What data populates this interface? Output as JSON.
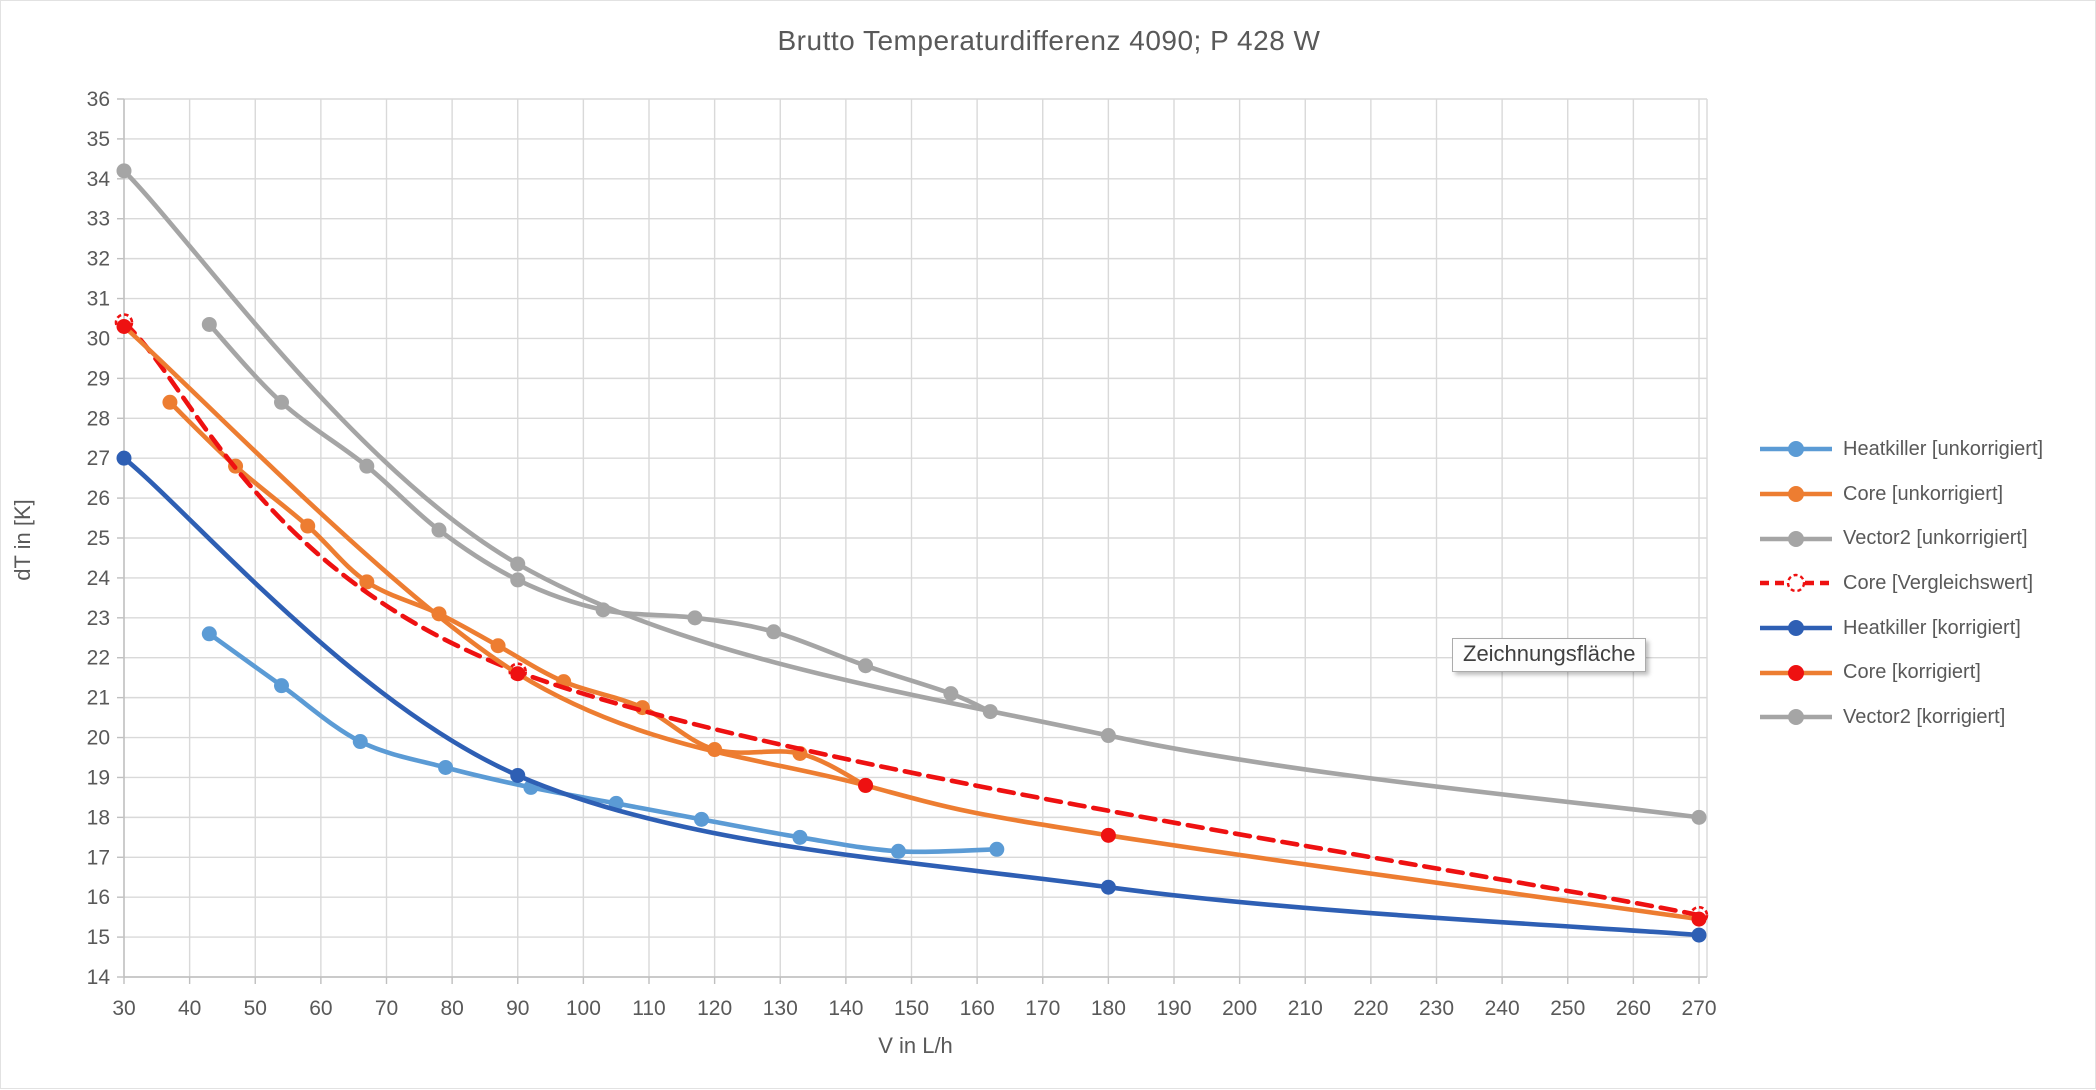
{
  "title": "Brutto Temperaturdifferenz 4090; P 428 W",
  "tooltip": {
    "text": "Zeichnungsfläche"
  },
  "styles": {
    "text_color": "#595959",
    "grid_color": "#d9d9d9",
    "axis_color": "#bfbfbf",
    "background": "#ffffff",
    "accent_light_blue": "#5b9bd5",
    "accent_orange": "#ed7d31",
    "accent_gray": "#a5a5a5",
    "accent_red": "#ee1111",
    "accent_dark_blue": "#2e5fb4"
  },
  "chart_data": {
    "type": "line",
    "title": "Brutto Temperaturdifferenz 4090; P 428 W",
    "xlabel": "V in L/h",
    "ylabel": "dT in [K]",
    "xlim": [
      30,
      270
    ],
    "xtick_step": 10,
    "ylim": [
      14,
      36
    ],
    "ytick_step": 1,
    "grid": true,
    "legend_position": "right",
    "series": [
      {
        "name": "Heatkiller [unkorrigiert]",
        "line_color": "#5b9bd5",
        "marker_color": "#5b9bd5",
        "line_style": "solid",
        "marker": "filled-circle",
        "points": [
          [
            43,
            22.6
          ],
          [
            54,
            21.3
          ],
          [
            66,
            19.9
          ],
          [
            79,
            19.25
          ],
          [
            92,
            18.75
          ],
          [
            105,
            18.35
          ],
          [
            118,
            17.95
          ],
          [
            133,
            17.5
          ],
          [
            148,
            17.15
          ],
          [
            163,
            17.2
          ]
        ]
      },
      {
        "name": "Core [unkorrigiert]",
        "line_color": "#ed7d31",
        "marker_color": "#ed7d31",
        "line_style": "solid",
        "marker": "filled-circle",
        "points": [
          [
            37,
            28.4
          ],
          [
            47,
            26.8
          ],
          [
            58,
            25.3
          ],
          [
            67,
            23.9
          ],
          [
            78,
            23.1
          ],
          [
            87,
            22.3
          ],
          [
            97,
            21.4
          ],
          [
            109,
            20.75
          ],
          [
            120,
            19.7
          ],
          [
            133,
            19.6
          ],
          [
            143,
            18.8
          ]
        ]
      },
      {
        "name": "Vector2 [unkorrigiert]",
        "line_color": "#a5a5a5",
        "marker_color": "#a5a5a5",
        "line_style": "solid",
        "marker": "filled-circle",
        "points": [
          [
            43,
            30.35
          ],
          [
            54,
            28.4
          ],
          [
            67,
            26.8
          ],
          [
            78,
            25.2
          ],
          [
            90,
            23.95
          ],
          [
            103,
            23.2
          ],
          [
            117,
            23.0
          ],
          [
            129,
            22.65
          ],
          [
            143,
            21.8
          ],
          [
            156,
            21.1
          ],
          [
            162,
            20.65
          ]
        ]
      },
      {
        "name": "Core [Vergleichswert]",
        "line_color": "#ee1111",
        "marker_color": "#ee1111",
        "line_style": "dashed",
        "marker": "open-dashed-circle",
        "points": [
          [
            30,
            30.4
          ],
          [
            90,
            21.65
          ],
          [
            270,
            15.55
          ]
        ]
      },
      {
        "name": "Heatkiller [korrigiert]",
        "line_color": "#2e5fb4",
        "marker_color": "#2e5fb4",
        "line_style": "solid",
        "marker": "filled-circle",
        "points": [
          [
            30,
            27.0
          ],
          [
            90,
            19.05
          ],
          [
            180,
            16.25
          ],
          [
            270,
            15.05
          ]
        ]
      },
      {
        "name": "Core [korrigiert]",
        "line_color": "#ed7d31",
        "marker_color": "#ee1111",
        "line_style": "solid",
        "marker": "filled-circle",
        "points": [
          [
            30,
            30.3
          ],
          [
            90,
            21.6
          ],
          [
            143,
            18.8
          ],
          [
            180,
            17.55
          ],
          [
            270,
            15.45
          ]
        ]
      },
      {
        "name": "Vector2 [korrigiert]",
        "line_color": "#a5a5a5",
        "marker_color": "#a5a5a5",
        "line_style": "solid",
        "marker": "filled-circle",
        "points": [
          [
            30,
            34.2
          ],
          [
            90,
            24.35
          ],
          [
            180,
            20.05
          ],
          [
            270,
            18.0
          ]
        ]
      }
    ]
  }
}
